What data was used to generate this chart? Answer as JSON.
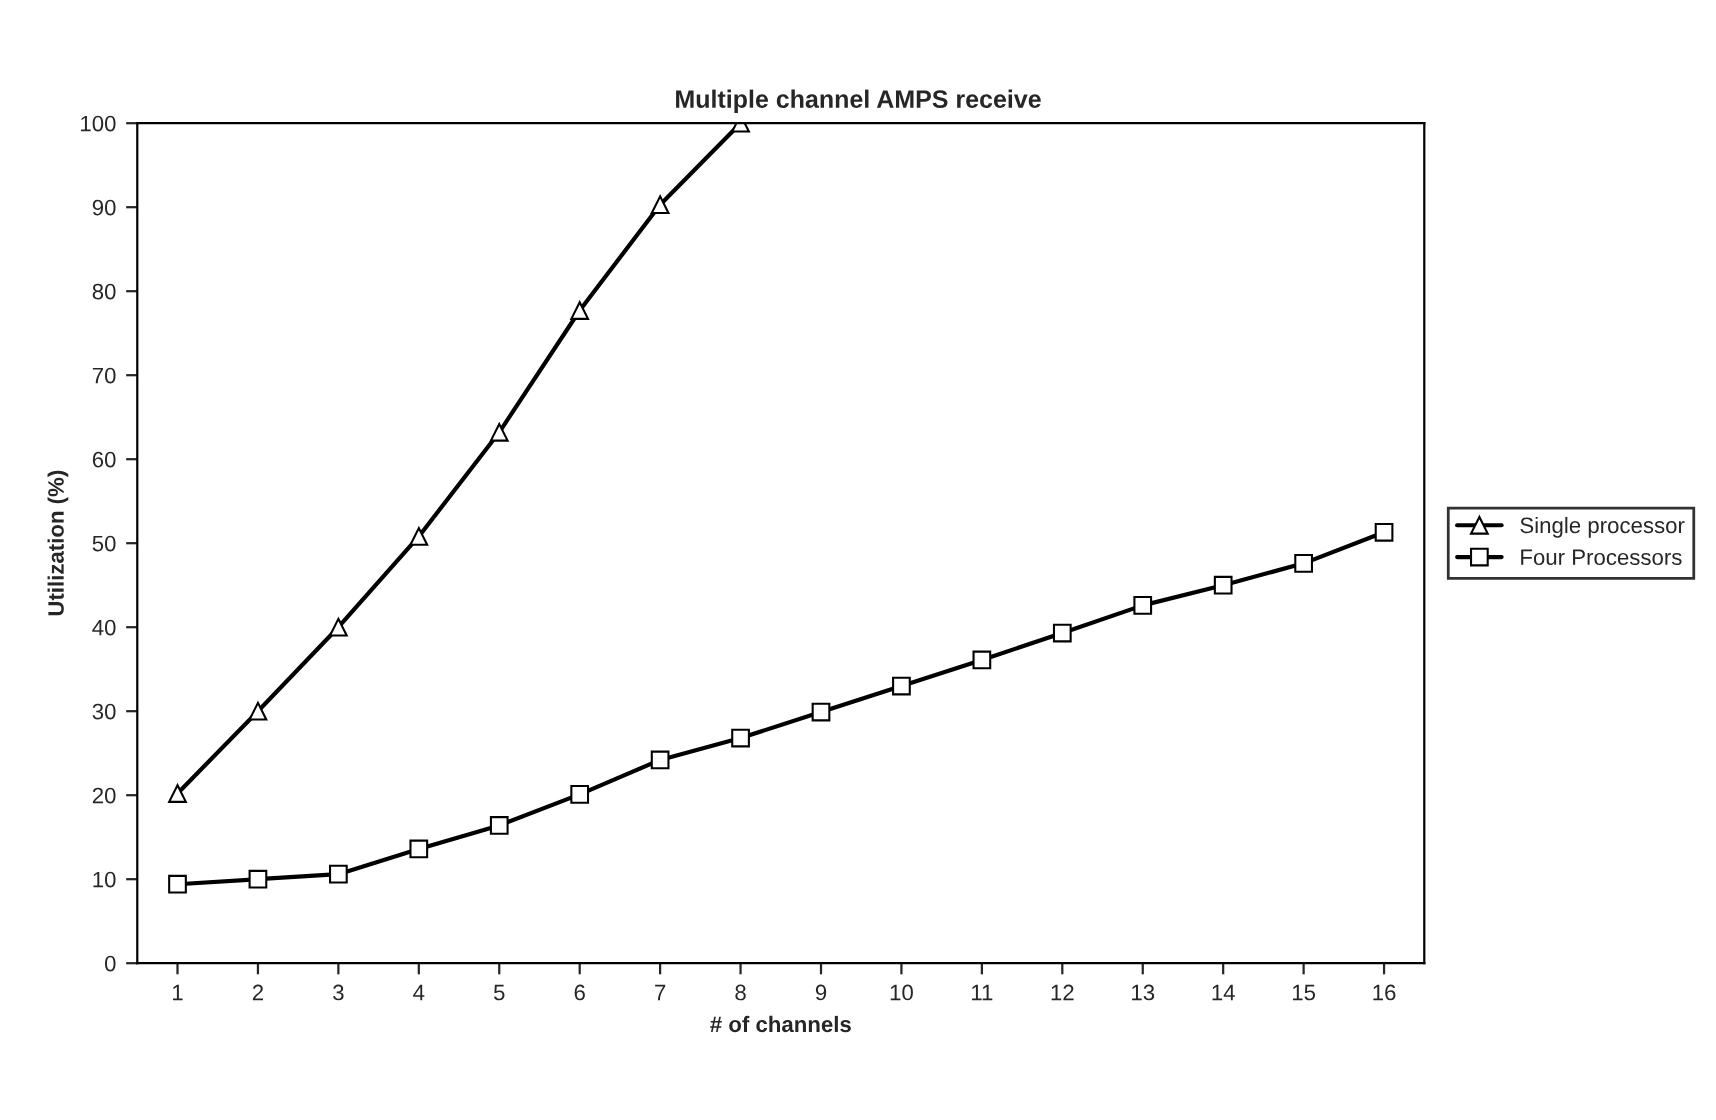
{
  "chart_data": {
    "type": "line",
    "title": "Multiple channel AMPS receive",
    "xlabel": "# of channels",
    "ylabel": "Utilization (%)",
    "categories": [
      "1",
      "2",
      "3",
      "4",
      "5",
      "6",
      "7",
      "8",
      "9",
      "10",
      "11",
      "12",
      "13",
      "14",
      "15",
      "16"
    ],
    "series": [
      {
        "name": "Single processor",
        "color": "#000000",
        "marker": "triangle",
        "values": [
          20.2,
          30,
          40,
          50.8,
          63.2,
          77.7,
          90.3,
          100,
          null,
          null,
          null,
          null,
          null,
          null,
          null,
          null
        ]
      },
      {
        "name": "Four Processors",
        "color": "#000000",
        "marker": "square",
        "values": [
          9.4,
          10,
          10.6,
          13.6,
          16.4,
          20.1,
          24.2,
          26.8,
          29.9,
          33,
          36.1,
          39.3,
          42.6,
          45,
          47.6,
          51.3
        ]
      }
    ],
    "ylim": [
      0,
      100
    ],
    "yticks": [
      0,
      10,
      20,
      30,
      40,
      50,
      60,
      70,
      80,
      90,
      100
    ],
    "grid": false,
    "legend": "right",
    "line_style": "solid"
  }
}
